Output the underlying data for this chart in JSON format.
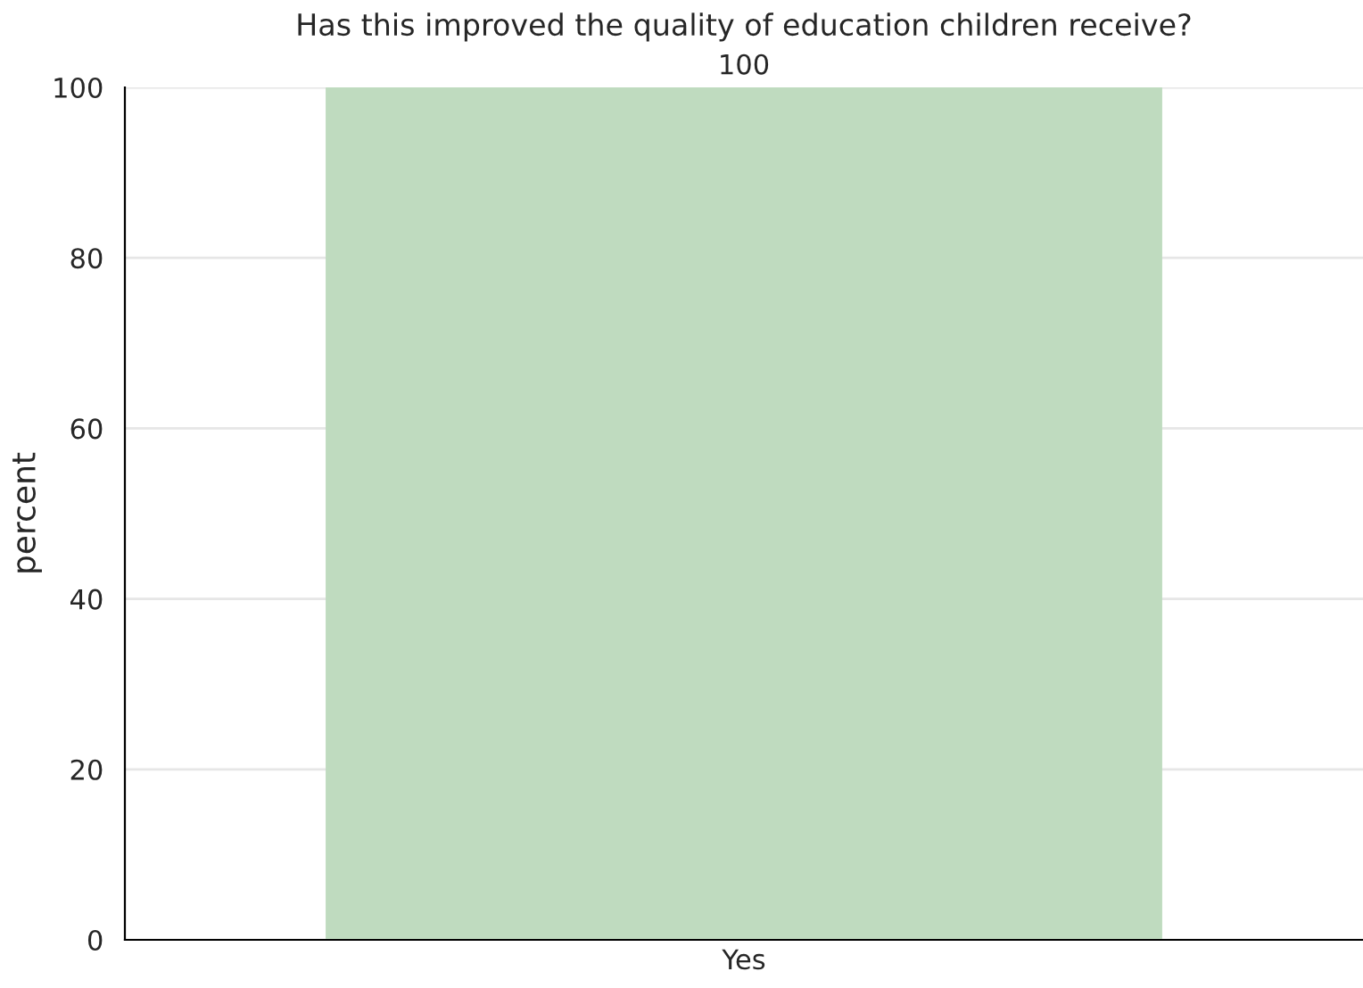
{
  "chart_data": {
    "type": "bar",
    "title": "Has this improved the quality of education children receive?",
    "ylabel": "percent",
    "categories": [
      "Yes"
    ],
    "values": [
      100
    ],
    "color": "#bfdbbf",
    "ylim": [
      0,
      100
    ],
    "yticks": [
      0,
      20,
      40,
      60,
      80,
      100
    ],
    "grid": "y",
    "data_labels": true
  }
}
